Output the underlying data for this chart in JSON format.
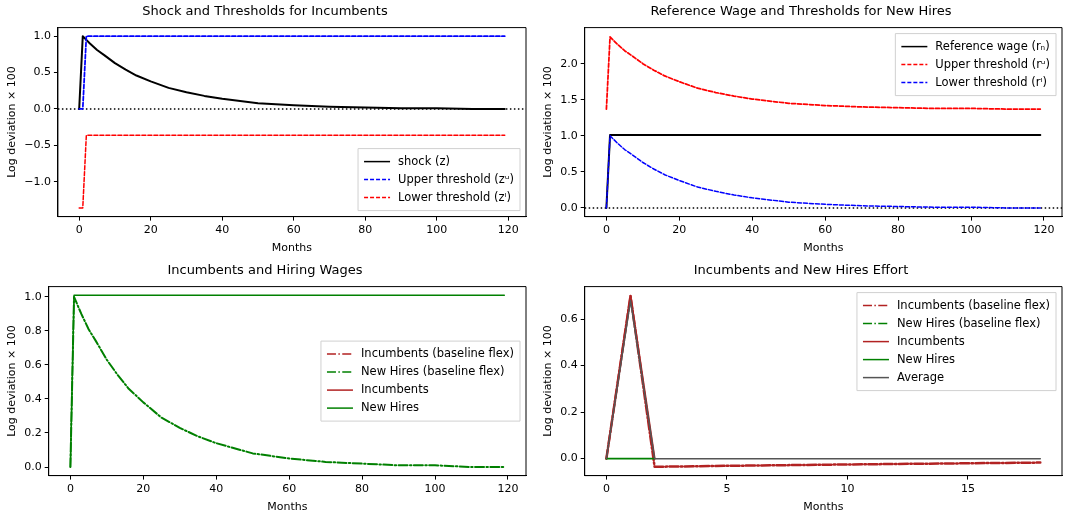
{
  "chart_data": [
    {
      "type": "line",
      "title": "Shock and Thresholds for Incumbents",
      "xlabel": "Months",
      "ylabel": "Log deviation × 100",
      "xlim": [
        -5.95,
        124.95
      ],
      "ylim": [
        -1.478,
        1.118
      ],
      "xticks": [
        0,
        20,
        40,
        60,
        80,
        100,
        120
      ],
      "yticks": [
        {
          "value": -1,
          "label": "−1.0"
        },
        {
          "value": -0.5,
          "label": "−0.5"
        },
        {
          "value": 0,
          "label": "0.0"
        },
        {
          "value": 0.5,
          "label": "0.5"
        },
        {
          "value": 1,
          "label": "1.0"
        }
      ],
      "grid": false,
      "legend": "lower right",
      "marker": "none",
      "ref_lines": [
        {
          "axis": "y",
          "value": 0,
          "color": "#000000",
          "line_style": "dotted"
        }
      ],
      "series": [
        {
          "name": "shock (z)",
          "color": "#000000",
          "line_style": "solid",
          "x": [
            0,
            1,
            2,
            3,
            5,
            7,
            10,
            13,
            16,
            20,
            25,
            30,
            35,
            40,
            50,
            60,
            70,
            80,
            90,
            100,
            110,
            119
          ],
          "values": [
            0,
            1,
            0.95,
            0.9,
            0.81,
            0.74,
            0.63,
            0.54,
            0.46,
            0.38,
            0.29,
            0.23,
            0.18,
            0.14,
            0.08,
            0.05,
            0.03,
            0.02,
            0.01,
            0.01,
            0,
            0
          ]
        },
        {
          "name": "Upper threshold (zᵘ)",
          "color": "#0000ff",
          "line_style": "dashed",
          "x": [
            0,
            1,
            2,
            119
          ],
          "values": [
            0,
            0,
            1,
            1
          ]
        },
        {
          "name": "Lower threshold (zˡ)",
          "color": "#ff0000",
          "line_style": "dashed",
          "x": [
            0,
            1,
            2,
            119
          ],
          "values": [
            -1.36,
            -1.36,
            -0.36,
            -0.36
          ]
        }
      ]
    },
    {
      "type": "line",
      "title": "Reference Wage and Thresholds for New Hires",
      "xlabel": "Months",
      "ylabel": "Log deviation × 100",
      "xlim": [
        -5.95,
        124.95
      ],
      "ylim": [
        -0.12,
        2.5
      ],
      "xticks": [
        0,
        20,
        40,
        60,
        80,
        100,
        120
      ],
      "yticks": [
        {
          "value": 0,
          "label": "0.0"
        },
        {
          "value": 0.5,
          "label": "0.5"
        },
        {
          "value": 1,
          "label": "1.0"
        },
        {
          "value": 1.5,
          "label": "1.5"
        },
        {
          "value": 2,
          "label": "2.0"
        }
      ],
      "grid": false,
      "legend": "top right",
      "marker": "none",
      "ref_lines": [
        {
          "axis": "y",
          "value": 0,
          "color": "#000000",
          "line_style": "dotted"
        }
      ],
      "series": [
        {
          "name": "Reference wage (rₙ)",
          "color": "#000000",
          "line_style": "solid",
          "x": [
            0,
            1,
            119
          ],
          "values": [
            0,
            1.01,
            1.01
          ]
        },
        {
          "name": "Upper threshold (rᵘ)",
          "color": "#ff0000",
          "line_style": "dashed",
          "x": [
            0,
            1,
            2,
            3,
            5,
            7,
            10,
            13,
            16,
            20,
            25,
            30,
            35,
            40,
            50,
            60,
            70,
            80,
            90,
            100,
            110,
            119
          ],
          "values": [
            1.37,
            2.37,
            2.32,
            2.27,
            2.18,
            2.11,
            2.0,
            1.91,
            1.83,
            1.75,
            1.66,
            1.6,
            1.55,
            1.51,
            1.45,
            1.42,
            1.4,
            1.39,
            1.38,
            1.38,
            1.37,
            1.37
          ]
        },
        {
          "name": "Lower threshold (rˡ)",
          "color": "#0000ff",
          "line_style": "dashed",
          "x": [
            0,
            1,
            2,
            3,
            5,
            7,
            10,
            13,
            16,
            20,
            25,
            30,
            35,
            40,
            50,
            60,
            70,
            80,
            90,
            100,
            110,
            119
          ],
          "values": [
            0,
            1,
            0.95,
            0.9,
            0.81,
            0.74,
            0.63,
            0.54,
            0.46,
            0.38,
            0.29,
            0.23,
            0.18,
            0.14,
            0.08,
            0.05,
            0.03,
            0.02,
            0.01,
            0.01,
            0,
            0
          ]
        }
      ]
    },
    {
      "type": "line",
      "title": "Incumbents and Hiring Wages",
      "xlabel": "Months",
      "ylabel": "Log deviation × 100",
      "xlim": [
        -5.95,
        124.95
      ],
      "ylim": [
        -0.0505,
        1.0605
      ],
      "xticks": [
        0,
        20,
        40,
        60,
        80,
        100,
        120
      ],
      "yticks": [
        {
          "value": 0,
          "label": "0.0"
        },
        {
          "value": 0.2,
          "label": "0.2"
        },
        {
          "value": 0.4,
          "label": "0.4"
        },
        {
          "value": 0.6,
          "label": "0.6"
        },
        {
          "value": 0.8,
          "label": "0.8"
        },
        {
          "value": 1,
          "label": "1.0"
        }
      ],
      "grid": false,
      "legend": "right",
      "marker": "none",
      "series": [
        {
          "name": "Incumbents (baseline flex)",
          "color": "#b22222",
          "line_style": "dashdot"
        },
        {
          "name": "New Hires (baseline flex)",
          "color": "#008000",
          "line_style": "dashdot",
          "x": [
            0,
            1,
            2,
            3,
            5,
            7,
            10,
            13,
            16,
            20,
            25,
            30,
            35,
            40,
            50,
            60,
            70,
            80,
            90,
            100,
            110,
            119
          ],
          "values": [
            0,
            1,
            0.95,
            0.9,
            0.81,
            0.74,
            0.63,
            0.54,
            0.46,
            0.38,
            0.29,
            0.23,
            0.18,
            0.14,
            0.08,
            0.05,
            0.03,
            0.02,
            0.01,
            0.01,
            0,
            0
          ]
        },
        {
          "name": "Incumbents",
          "color": "#b22222",
          "line_style": "solid"
        },
        {
          "name": "New Hires",
          "color": "#008000",
          "line_style": "solid",
          "x": [
            0,
            1,
            119
          ],
          "values": [
            0,
            1.01,
            1.01
          ]
        }
      ]
    },
    {
      "type": "line",
      "title": "Incumbents and New Hires Effort",
      "xlabel": "Months",
      "ylabel": "Log deviation × 100",
      "xlim": [
        -0.9,
        18.9
      ],
      "ylim": [
        -0.073,
        0.74
      ],
      "xticks": [
        0,
        5,
        10,
        15
      ],
      "yticks": [
        {
          "value": 0,
          "label": "0.0"
        },
        {
          "value": 0.2,
          "label": "0.2"
        },
        {
          "value": 0.4,
          "label": "0.4"
        },
        {
          "value": 0.6,
          "label": "0.6"
        }
      ],
      "grid": false,
      "legend": "top right",
      "marker": "none",
      "series": [
        {
          "name": "Incumbents (baseline flex)",
          "color": "#b22222",
          "line_style": "dashdot",
          "x": [
            0,
            1,
            2,
            5,
            10,
            15,
            18
          ],
          "values": [
            0,
            0.7,
            -0.035,
            -0.031,
            -0.025,
            -0.02,
            -0.017
          ]
        },
        {
          "name": "New Hires (baseline flex)",
          "color": "#008000",
          "line_style": "dashdot"
        },
        {
          "name": "Incumbents",
          "color": "#b22222",
          "line_style": "solid",
          "x": [
            0,
            1,
            2
          ],
          "values": [
            0,
            0.7,
            0
          ]
        },
        {
          "name": "New Hires",
          "color": "#008000",
          "line_style": "solid",
          "x": [
            0,
            2
          ],
          "values": [
            0,
            0
          ]
        },
        {
          "name": "Average",
          "color": "#555555",
          "line_style": "solid",
          "x": [
            0,
            1,
            2,
            18
          ],
          "values": [
            0,
            0.68,
            0,
            0
          ]
        }
      ]
    }
  ]
}
